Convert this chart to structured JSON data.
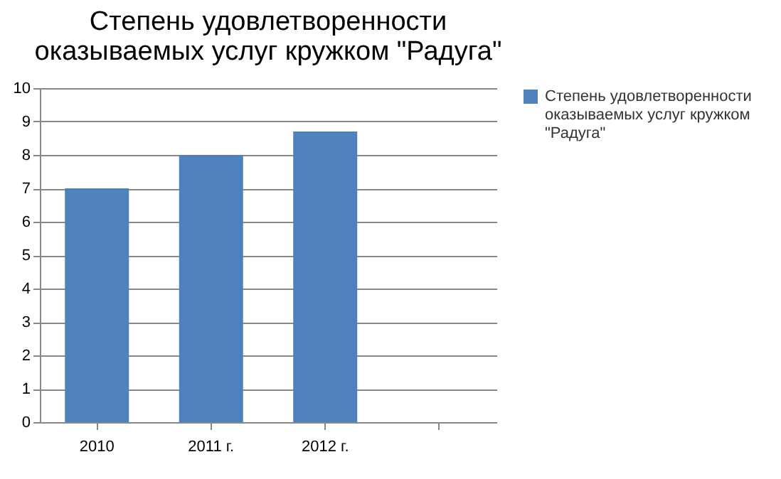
{
  "chart_data": {
    "type": "bar",
    "title": "Степень удовлетворенности оказываемых услуг кружком \"Радуга\"",
    "categories": [
      "2010",
      "2011 г.",
      "2012 г.",
      null
    ],
    "series": [
      {
        "name": "Степень удовлетворенности оказываемых услуг кружком \"Радуга\"",
        "color": "#4f81bd",
        "values": [
          7,
          8,
          8.7,
          null
        ]
      }
    ],
    "ylim": [
      0,
      10
    ],
    "yticks": [
      0,
      1,
      2,
      3,
      4,
      5,
      6,
      7,
      8,
      9,
      10
    ],
    "grid": "y",
    "legend": "right"
  }
}
